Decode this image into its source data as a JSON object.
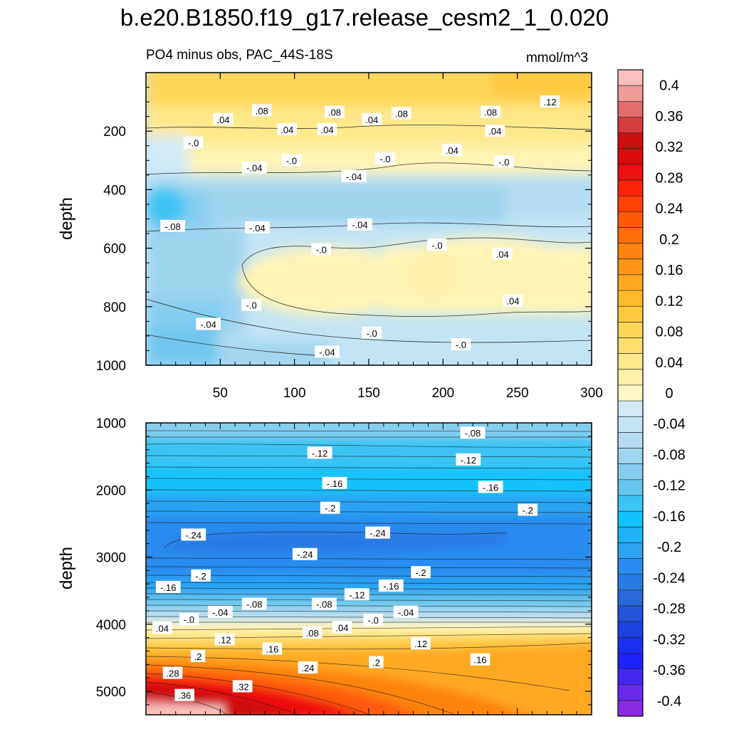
{
  "page": {
    "title": "b.e20.B1850.f19_g17.release_cesm2_1_0.020"
  },
  "chart_data": [
    {
      "type": "heatmap",
      "panel": "upper",
      "subtitle": "PO4 minus obs, PAC_44S-18S",
      "units": "mmol/m^3",
      "xlabel": "",
      "ylabel": "depth",
      "xlim": [
        0,
        300
      ],
      "ylim": [
        1000,
        0
      ],
      "xticks": [
        50,
        100,
        150,
        200,
        250,
        300
      ],
      "xtick_labels": [
        "50",
        "100",
        "150",
        "200",
        "250",
        "300"
      ],
      "yticks": [
        200,
        400,
        600,
        800,
        1000
      ],
      "ytick_labels": [
        "200",
        "400",
        "600",
        "800",
        "1000"
      ],
      "contour_labels": [
        {
          "text": ".08",
          "x": 78,
          "y": 130
        },
        {
          "text": ".08",
          "x": 127,
          "y": 135
        },
        {
          "text": ".08",
          "x": 172,
          "y": 140
        },
        {
          "text": ".08",
          "x": 232,
          "y": 135
        },
        {
          "text": ".12",
          "x": 272,
          "y": 100
        },
        {
          "text": ".04",
          "x": 52,
          "y": 160
        },
        {
          "text": ".04",
          "x": 95,
          "y": 195
        },
        {
          "text": ".04",
          "x": 122,
          "y": 195
        },
        {
          "text": ".04",
          "x": 152,
          "y": 160
        },
        {
          "text": ".04",
          "x": 235,
          "y": 200
        },
        {
          "text": ".04",
          "x": 206,
          "y": 265
        },
        {
          "text": "-.0",
          "x": 32,
          "y": 240
        },
        {
          "text": "-.0",
          "x": 98,
          "y": 300
        },
        {
          "text": "-.0",
          "x": 161,
          "y": 295
        },
        {
          "text": "-.0",
          "x": 241,
          "y": 305
        },
        {
          "text": "-.04",
          "x": 73,
          "y": 325
        },
        {
          "text": "-.04",
          "x": 140,
          "y": 355
        },
        {
          "text": "-.08",
          "x": 18,
          "y": 525
        },
        {
          "text": "-.04",
          "x": 75,
          "y": 530
        },
        {
          "text": "-.04",
          "x": 144,
          "y": 520
        },
        {
          "text": "-.0",
          "x": 118,
          "y": 605
        },
        {
          "text": "-.0",
          "x": 196,
          "y": 590
        },
        {
          "text": ".04",
          "x": 240,
          "y": 620
        },
        {
          "text": "-.0",
          "x": 71,
          "y": 795
        },
        {
          "text": "-.04",
          "x": 42,
          "y": 860
        },
        {
          "text": "-.0",
          "x": 152,
          "y": 890
        },
        {
          "text": "-.0",
          "x": 212,
          "y": 930
        },
        {
          "text": ".04",
          "x": 247,
          "y": 780
        },
        {
          "text": "-.04",
          "x": 122,
          "y": 955
        }
      ]
    },
    {
      "type": "heatmap",
      "panel": "lower",
      "xlabel": "",
      "ylabel": "depth",
      "xlim": [
        0,
        300
      ],
      "ylim": [
        5350,
        1000
      ],
      "yticks": [
        1000,
        2000,
        3000,
        4000,
        5000
      ],
      "ytick_labels": [
        "1000",
        "2000",
        "3000",
        "4000",
        "5000"
      ],
      "contour_labels": [
        {
          "text": "-.08",
          "x": 220,
          "y": 1150
        },
        {
          "text": "-.12",
          "x": 117,
          "y": 1450
        },
        {
          "text": "-.12",
          "x": 217,
          "y": 1550
        },
        {
          "text": "-.16",
          "x": 127,
          "y": 1900
        },
        {
          "text": "-.16",
          "x": 232,
          "y": 1960
        },
        {
          "text": "-.2",
          "x": 124,
          "y": 2270
        },
        {
          "text": "-.2",
          "x": 257,
          "y": 2300
        },
        {
          "text": "-.24",
          "x": 32,
          "y": 2670
        },
        {
          "text": "-.24",
          "x": 156,
          "y": 2640
        },
        {
          "text": "-.24",
          "x": 107,
          "y": 2960
        },
        {
          "text": "-.2",
          "x": 185,
          "y": 3230
        },
        {
          "text": "-.2",
          "x": 37,
          "y": 3280
        },
        {
          "text": "-.16",
          "x": 15,
          "y": 3450
        },
        {
          "text": "-.16",
          "x": 165,
          "y": 3430
        },
        {
          "text": "-.12",
          "x": 142,
          "y": 3560
        },
        {
          "text": "-.08",
          "x": 73,
          "y": 3700
        },
        {
          "text": "-.08",
          "x": 120,
          "y": 3700
        },
        {
          "text": "-.04",
          "x": 50,
          "y": 3820
        },
        {
          "text": "-.04",
          "x": 175,
          "y": 3820
        },
        {
          "text": "-.0",
          "x": 29,
          "y": 3930
        },
        {
          "text": "-.0",
          "x": 153,
          "y": 3940
        },
        {
          "text": ".04",
          "x": 11,
          "y": 4060
        },
        {
          "text": ".04",
          "x": 132,
          "y": 4050
        },
        {
          "text": ".08",
          "x": 112,
          "y": 4130
        },
        {
          "text": ".12",
          "x": 53,
          "y": 4230
        },
        {
          "text": ".12",
          "x": 185,
          "y": 4290
        },
        {
          "text": ".16",
          "x": 85,
          "y": 4370
        },
        {
          "text": ".16",
          "x": 225,
          "y": 4530
        },
        {
          "text": ".2",
          "x": 35,
          "y": 4480
        },
        {
          "text": ".2",
          "x": 155,
          "y": 4570
        },
        {
          "text": ".24",
          "x": 109,
          "y": 4650
        },
        {
          "text": ".28",
          "x": 18,
          "y": 4730
        },
        {
          "text": ".32",
          "x": 65,
          "y": 4930
        },
        {
          "text": ".36",
          "x": 26,
          "y": 5060
        }
      ]
    }
  ],
  "colorbar": {
    "min": -0.42,
    "max": 0.42,
    "levels": [
      -0.4,
      -0.38,
      -0.36,
      -0.34,
      -0.32,
      -0.3,
      -0.28,
      -0.26,
      -0.24,
      -0.22,
      -0.2,
      -0.18,
      -0.16,
      -0.14,
      -0.12,
      -0.1,
      -0.08,
      -0.06,
      -0.04,
      -0.02,
      0,
      0.02,
      0.04,
      0.06,
      0.08,
      0.1,
      0.12,
      0.14,
      0.16,
      0.18,
      0.2,
      0.22,
      0.24,
      0.26,
      0.28,
      0.3,
      0.32,
      0.34,
      0.36,
      0.38,
      0.4
    ],
    "tick_labels": [
      "-0.4",
      "-0.36",
      "-0.32",
      "-0.28",
      "-0.24",
      "-0.2",
      "-0.16",
      "-0.12",
      "-0.08",
      "-0.04",
      "0",
      "0.04",
      "0.08",
      "0.12",
      "0.16",
      "0.2",
      "0.24",
      "0.28",
      "0.32",
      "0.36",
      "0.4"
    ],
    "colors": [
      "#8a2be2",
      "#6a2bea",
      "#4428f0",
      "#2020f8",
      "#1a30f0",
      "#1c44e0",
      "#2456d8",
      "#2868d8",
      "#2a7ae4",
      "#2a8cee",
      "#2ba2f2",
      "#1fb2f8",
      "#12c2fb",
      "#3cc4f4",
      "#66c6ee",
      "#84cdef",
      "#9ed5ef",
      "#b4ddf1",
      "#c4e4f3",
      "#d3eaf6",
      "#fff8c4",
      "#fff0a8",
      "#ffe88c",
      "#ffdf70",
      "#ffd658",
      "#ffc940",
      "#ffba2a",
      "#ffa820",
      "#ff9618",
      "#ff8410",
      "#ff700c",
      "#ff5a08",
      "#ff4004",
      "#fa2408",
      "#ec1010",
      "#dc0c0c",
      "#cc1010",
      "#d63c3c",
      "#e46c6c",
      "#f09a9a",
      "#fbc0c0"
    ]
  }
}
